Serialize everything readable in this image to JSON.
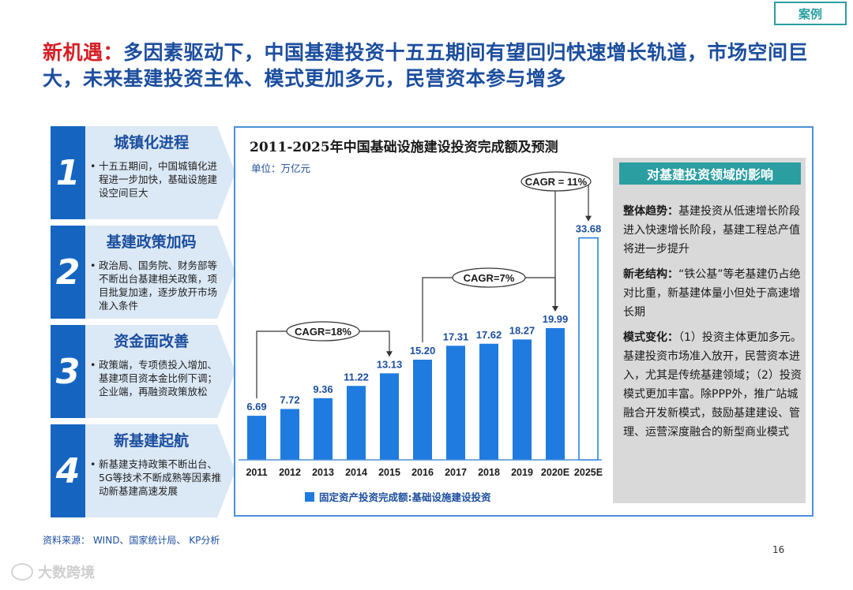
{
  "tag": "案例",
  "headline": {
    "lead": "新机遇：",
    "text": "多因素驱动下，中国基建投资十五五期间有望回归快速增长轨道，市场空间巨大，未来基建投资主体、模式更加多元，民营资本参与增多"
  },
  "factors": [
    {
      "num": "1",
      "title": "城镇化进程",
      "desc": "十五五期间，中国城镇化进程进一步加快，基础设施建设空间巨大"
    },
    {
      "num": "2",
      "title": "基建政策加码",
      "desc": "政治局、国务院、财务部等不断出台基建相关政策，项目批复加速，逐步放开市场准入条件"
    },
    {
      "num": "3",
      "title": "资金面改善",
      "desc": "政策端，专项债投入增加、基建项目资本金比例下调；企业端，再融资政策放松"
    },
    {
      "num": "4",
      "title": "新基建起航",
      "desc": "新基建支持政策不断出台、5G等技术不断成熟等因素推动新基建高速发展"
    }
  ],
  "chart_data": {
    "type": "bar",
    "title": "2011-2025年中国基础设施建设投资完成额及预测",
    "unit": "单位：万亿元",
    "categories": [
      "2011",
      "2012",
      "2013",
      "2014",
      "2015",
      "2016",
      "2017",
      "2018",
      "2019",
      "2020E",
      "2025E"
    ],
    "values": [
      6.69,
      7.72,
      9.36,
      11.22,
      13.13,
      15.2,
      17.31,
      17.62,
      18.27,
      19.99,
      33.68
    ],
    "value_labels": [
      "6.69",
      "7.72",
      "9.36",
      "11.22",
      "13.13",
      "15.20",
      "17.31",
      "17.62",
      "18.27",
      "19.99",
      "33.68"
    ],
    "series": [
      {
        "name": "固定资产投资完成额:基础设施建设投资"
      }
    ],
    "ylim": [
      0,
      36
    ],
    "forecast_categories": [
      "2025E"
    ],
    "annotations": [
      {
        "label": "CAGR=18%",
        "from": "2011",
        "to": "2015"
      },
      {
        "label": "CAGR=7%",
        "from": "2016",
        "to": "2020E"
      },
      {
        "label": "CAGR = 11%",
        "from": "2020E",
        "to": "2025E"
      }
    ],
    "legend_position": "bottom",
    "colors": {
      "bar": "#1f7be0",
      "forecast_fill": "#ffffff",
      "forecast_stroke": "#1f7be0",
      "label": "#1c4e9e"
    }
  },
  "impact": {
    "title": "对基建投资领域的影响",
    "items": [
      {
        "label": "整体趋势：",
        "text": "基建投资从低速增长阶段进入快速增长阶段，基建工程总产值将进一步提升"
      },
      {
        "label": "新老结构：",
        "text": "“铁公基”等老基建仍占绝对比重，新基建体量小但处于高速增长期"
      },
      {
        "label": "模式变化：",
        "text": "（1）投资主体更加多元。基建投资市场准入放开，民营资本进入，尤其是传统基建领域；（2）投资模式更加丰富。除PPP外，推广站城融合开发新模式，鼓励基建建设、管理、运营深度融合的新型商业模式"
      }
    ]
  },
  "source": "资料来源：  WIND、国家统计局、 KP分析",
  "page_number": "16",
  "watermark": "大数跨境"
}
